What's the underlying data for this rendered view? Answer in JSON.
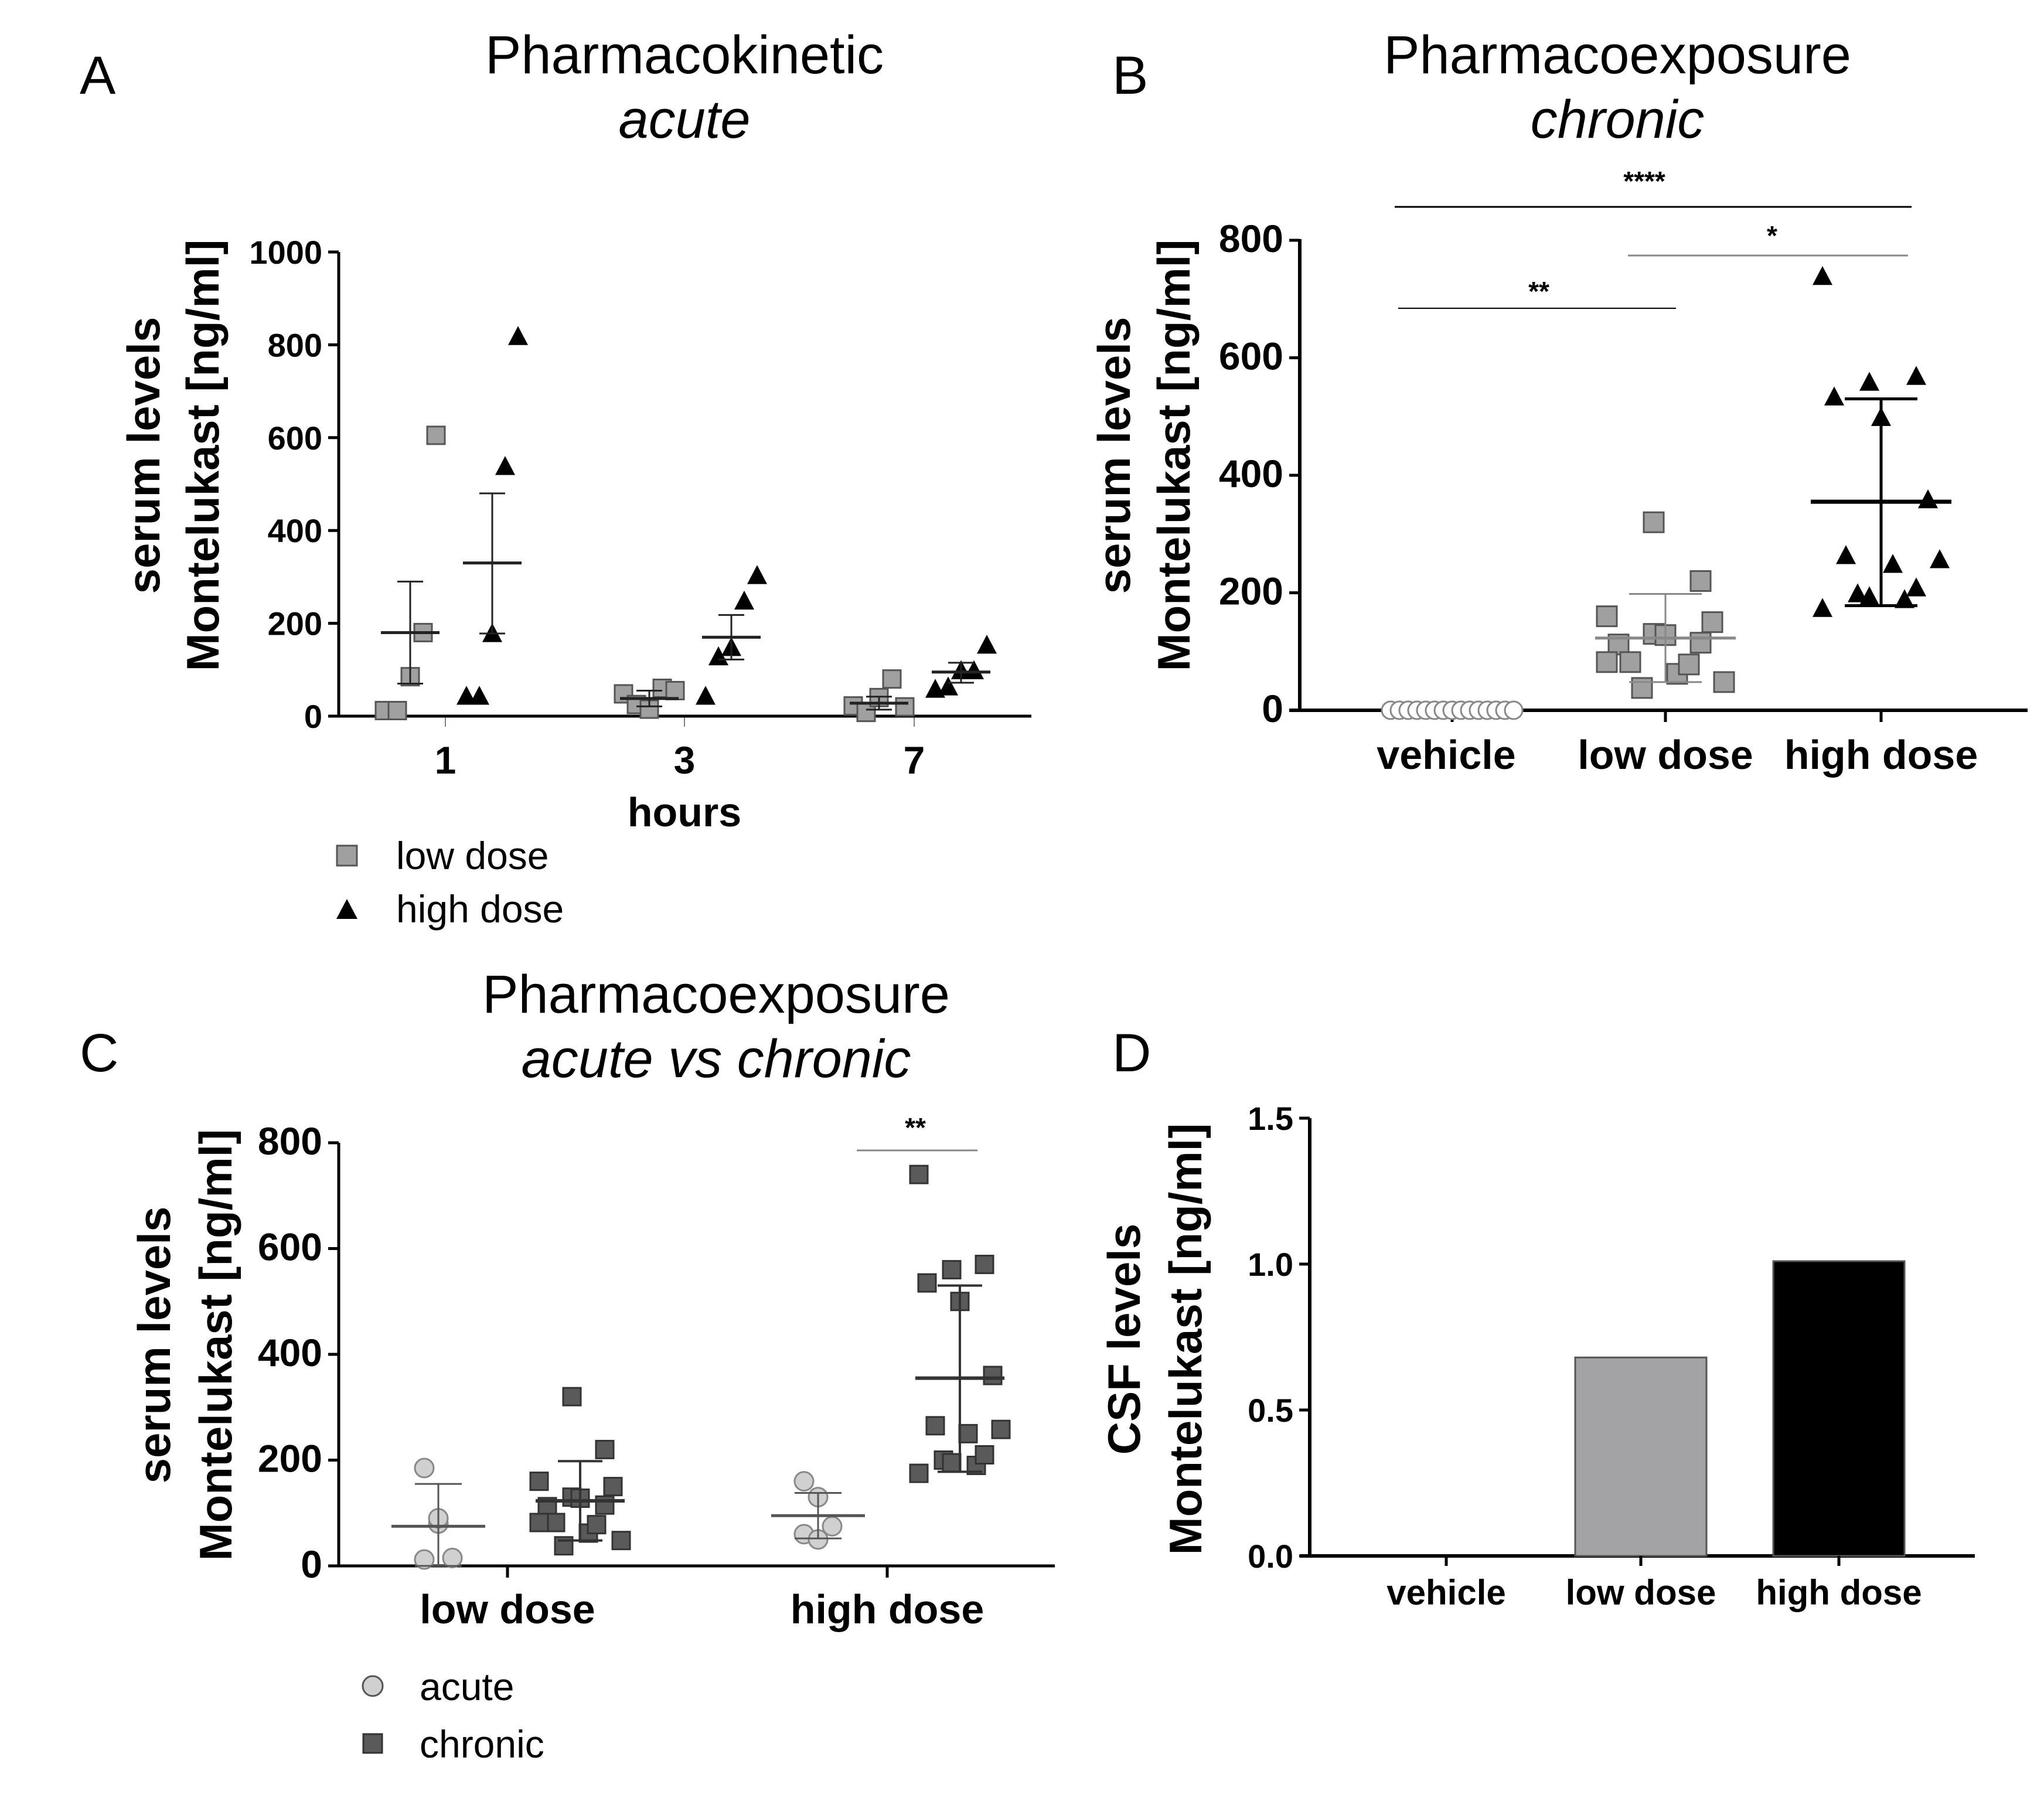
{
  "chart_data": [
    {
      "panel": "A",
      "type": "scatter",
      "title": "Pharmacokinetic",
      "subtitle": "acute",
      "ylabel_line1": "serum levels",
      "ylabel_line2": "Montelukast [ng/ml]",
      "xlabel": "hours",
      "x_categories": [
        "1",
        "3",
        "7"
      ],
      "ylim": [
        0,
        1000
      ],
      "yticks": [
        "0",
        "200",
        "400",
        "600",
        "800",
        "1000"
      ],
      "series": [
        {
          "name": "low dose",
          "marker": "square",
          "color": "#a0a0a0",
          "points": [
            [
              12,
              12,
              85,
              180,
              605
            ],
            [
              48,
              25,
              15,
              60,
              55
            ],
            [
              22,
              8,
              40,
              80,
              20
            ]
          ],
          "mean": [
            180,
            38,
            28
          ],
          "sem_upper": [
            290,
            55,
            42
          ],
          "sem_lower": [
            70,
            21,
            14
          ]
        },
        {
          "name": "high dose",
          "marker": "triangle",
          "color": "#000000",
          "points": [
            [
              45,
              45,
              180,
              540,
              820
            ],
            [
              45,
              130,
              150,
              250,
              305
            ],
            [
              60,
              65,
              100,
              100,
              155
            ]
          ],
          "mean": [
            330,
            170,
            95
          ],
          "sem_upper": [
            480,
            218,
            115
          ],
          "sem_lower": [
            178,
            122,
            72
          ]
        }
      ],
      "legend": [
        "low dose",
        "high dose"
      ]
    },
    {
      "panel": "B",
      "type": "scatter",
      "title": "Pharmacoexposure",
      "subtitle": "chronic",
      "ylabel_line1": "serum levels",
      "ylabel_line2": "Montelukast [ng/ml]",
      "categories": [
        "vehicle",
        "low dose",
        "high dose"
      ],
      "ylim": [
        0,
        800
      ],
      "yticks": [
        "0",
        "200",
        "400",
        "600",
        "800"
      ],
      "groups": [
        {
          "name": "vehicle",
          "marker": "circle",
          "color": "#ffffff",
          "values": [
            0,
            0,
            0,
            0,
            0,
            0,
            0,
            0,
            0,
            0,
            0,
            0,
            0,
            0,
            0
          ],
          "mean": 0,
          "sd_upper": 0,
          "sd_lower": 0
        },
        {
          "name": "low dose",
          "marker": "square",
          "color": "#a0a0a0",
          "values": [
            160,
            130,
            115,
            112,
            128,
            150,
            82,
            62,
            48,
            38,
            78,
            82,
            320,
            220
          ],
          "mean": 123,
          "sd_upper": 198,
          "sd_lower": 48
        },
        {
          "name": "high dose",
          "marker": "triangle",
          "color": "#000000",
          "values": [
            740,
            560,
            570,
            535,
            500,
            360,
            265,
            250,
            258,
            200,
            190,
            175,
            195,
            210
          ],
          "mean": 355,
          "sd_upper": 530,
          "sd_lower": 178
        }
      ],
      "significance": [
        {
          "from": "vehicle",
          "to": "high dose",
          "label": "****"
        },
        {
          "from": "low dose",
          "to": "high dose",
          "label": "*"
        },
        {
          "from": "vehicle",
          "to": "low dose",
          "label": "**"
        }
      ]
    },
    {
      "panel": "C",
      "type": "scatter",
      "title": "Pharmacoexposure",
      "subtitle": "acute vs chronic",
      "ylabel_line1": "serum levels",
      "ylabel_line2": "Montelukast [ng/ml]",
      "categories": [
        "low dose",
        "high dose"
      ],
      "ylim": [
        0,
        800
      ],
      "yticks": [
        "0",
        "200",
        "400",
        "600",
        "800"
      ],
      "series": [
        {
          "name": "acute",
          "marker": "circle",
          "color": "#d0d0d0",
          "values": [
            [
              185,
              80,
              15,
              12,
              90
            ],
            [
              160,
              130,
              75,
              60,
              50
            ]
          ],
          "mean": [
            75,
            95
          ],
          "sd_upper": [
            155,
            138
          ],
          "sd_lower": [
            0,
            52
          ]
        },
        {
          "name": "chronic",
          "marker": "square",
          "color": "#5a5a5a",
          "values": [
            [
              160,
              130,
              115,
              112,
              128,
              150,
              82,
              62,
              48,
              38,
              78,
              82,
              320,
              220
            ],
            [
              740,
              560,
              570,
              535,
              500,
              360,
              265,
              250,
              258,
              200,
              190,
              175,
              195,
              210
            ]
          ],
          "mean": [
            123,
            355
          ],
          "sd_upper": [
            198,
            530
          ],
          "sd_lower": [
            48,
            178
          ]
        }
      ],
      "significance": [
        {
          "group": "high dose",
          "label": "**"
        }
      ],
      "legend": [
        "acute",
        "chronic"
      ]
    },
    {
      "panel": "D",
      "type": "bar",
      "ylabel_line1": "CSF levels",
      "ylabel_line2": "Montelukast [ng/ml]",
      "categories": [
        "vehicle",
        "low dose",
        "high dose"
      ],
      "values": [
        0,
        0.68,
        1.01
      ],
      "colors": [
        "#ffffff",
        "#a3a3a6",
        "#000000"
      ],
      "ylim": [
        0,
        1.5
      ],
      "yticks": [
        "0.0",
        "0.5",
        "1.0",
        "1.5"
      ]
    }
  ]
}
